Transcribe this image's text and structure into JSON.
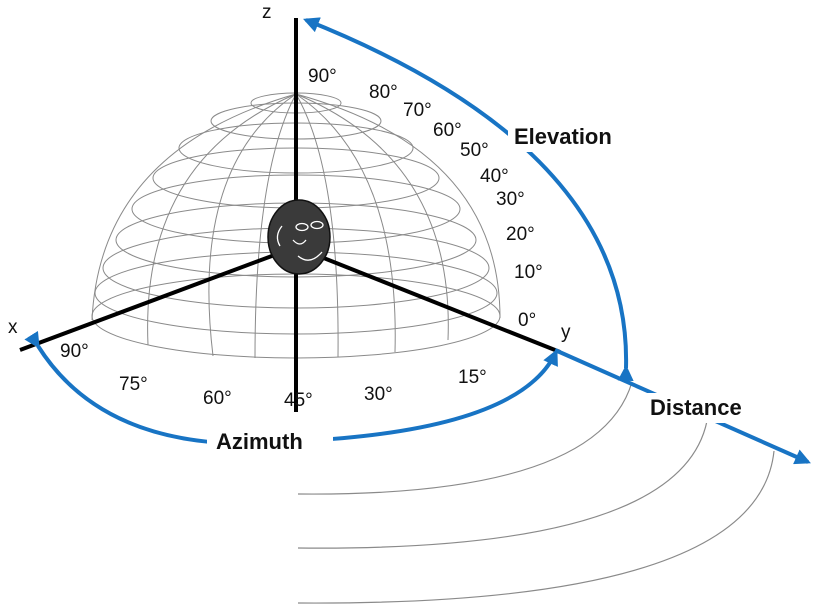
{
  "axes": {
    "x": "x",
    "y": "y",
    "z": "z"
  },
  "elevation": {
    "title": "Elevation",
    "ticks": [
      "90°",
      "80°",
      "70°",
      "60°",
      "50°",
      "40°",
      "30°",
      "20°",
      "10°",
      "0°"
    ]
  },
  "azimuth": {
    "title": "Azimuth",
    "ticks": [
      "90°",
      "75°",
      "60°",
      "45°",
      "30°",
      "15°"
    ]
  },
  "distance": {
    "title": "Distance"
  },
  "colors": {
    "arrow": "#1874c4",
    "axis": "#000000",
    "grid": "#8a8a8a",
    "head": "#3a3a3a"
  }
}
